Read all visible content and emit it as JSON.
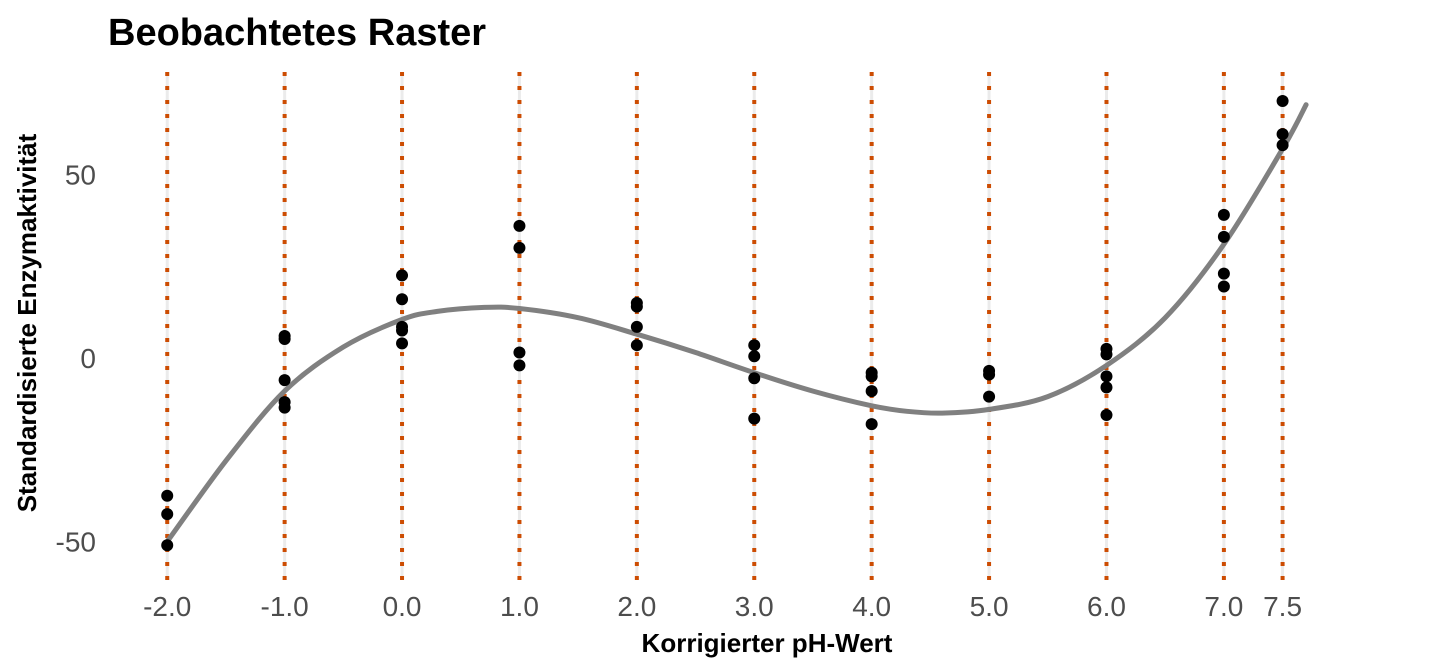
{
  "chart_data": {
    "type": "scatter",
    "title": "Beobachtetes Raster",
    "xlabel": "Korrigierter pH-Wert",
    "ylabel": "Standardisierte Enzymaktivität",
    "xlim": [
      -2.3,
      8.5
    ],
    "ylim": [
      -61,
      79
    ],
    "x_ticks": [
      -2.0,
      -1.0,
      0.0,
      1.0,
      2.0,
      3.0,
      4.0,
      5.0,
      6.0,
      7.0,
      7.5
    ],
    "x_tick_labels": [
      "-2.0",
      "-1.0",
      "0.0",
      "1.0",
      "2.0",
      "3.0",
      "4.0",
      "5.0",
      "6.0",
      "7.0",
      "7.5"
    ],
    "y_ticks": [
      -50,
      0,
      50
    ],
    "y_tick_labels": [
      "-50",
      "0",
      "50"
    ],
    "grid": "vertical",
    "legend": "none",
    "colors": {
      "points": "#000000",
      "fit_line": "#808080",
      "reference_lines": "#cc4c02",
      "gridlines": "#ebebeb"
    },
    "reference_lines_x": [
      -2.0,
      -1.0,
      0.0,
      1.0,
      2.0,
      3.0,
      4.0,
      5.0,
      6.0,
      7.0,
      7.5
    ],
    "points": [
      {
        "x": -2.0,
        "y": -37.5
      },
      {
        "x": -2.0,
        "y": -42.5
      },
      {
        "x": -2.0,
        "y": -51.0
      },
      {
        "x": -1.0,
        "y": 6.0
      },
      {
        "x": -1.0,
        "y": 5.2
      },
      {
        "x": -1.0,
        "y": -6.0
      },
      {
        "x": -1.0,
        "y": -12.0
      },
      {
        "x": -1.0,
        "y": -13.5
      },
      {
        "x": 0.0,
        "y": 22.5
      },
      {
        "x": 0.0,
        "y": 16.0
      },
      {
        "x": 0.0,
        "y": 8.5
      },
      {
        "x": 0.0,
        "y": 7.5
      },
      {
        "x": 0.0,
        "y": 4.0
      },
      {
        "x": 1.0,
        "y": 36.0
      },
      {
        "x": 1.0,
        "y": 30.0
      },
      {
        "x": 1.0,
        "y": 1.5
      },
      {
        "x": 1.0,
        "y": -2.0
      },
      {
        "x": 2.0,
        "y": 15.0
      },
      {
        "x": 2.0,
        "y": 14.0
      },
      {
        "x": 2.0,
        "y": 8.5
      },
      {
        "x": 2.0,
        "y": 3.5
      },
      {
        "x": 3.0,
        "y": 3.5
      },
      {
        "x": 3.0,
        "y": 0.5
      },
      {
        "x": 3.0,
        "y": -5.5
      },
      {
        "x": 3.0,
        "y": -16.5
      },
      {
        "x": 4.0,
        "y": -4.0
      },
      {
        "x": 4.0,
        "y": -5.0
      },
      {
        "x": 4.0,
        "y": -9.0
      },
      {
        "x": 4.0,
        "y": -18.0
      },
      {
        "x": 5.0,
        "y": -3.5
      },
      {
        "x": 5.0,
        "y": -4.5
      },
      {
        "x": 5.0,
        "y": -10.5
      },
      {
        "x": 6.0,
        "y": 2.5
      },
      {
        "x": 6.0,
        "y": 1.0
      },
      {
        "x": 6.0,
        "y": -5.0
      },
      {
        "x": 6.0,
        "y": -8.0
      },
      {
        "x": 6.0,
        "y": -15.5
      },
      {
        "x": 7.0,
        "y": 39.0
      },
      {
        "x": 7.0,
        "y": 33.0
      },
      {
        "x": 7.0,
        "y": 23.0
      },
      {
        "x": 7.0,
        "y": 19.5
      },
      {
        "x": 7.5,
        "y": 70.0
      },
      {
        "x": 7.5,
        "y": 61.0
      },
      {
        "x": 7.5,
        "y": 58.0
      }
    ],
    "fit_line": {
      "type": "smooth",
      "x": [
        -2.0,
        -1.5,
        -1.0,
        -0.5,
        0.0,
        0.3,
        0.7,
        1.0,
        1.5,
        2.0,
        2.5,
        3.0,
        3.5,
        4.0,
        4.3,
        4.6,
        5.0,
        5.5,
        6.0,
        6.5,
        7.0,
        7.5,
        7.7
      ],
      "y": [
        -50.0,
        -28.0,
        -9.0,
        3.0,
        10.5,
        12.7,
        13.8,
        13.5,
        11.0,
        6.5,
        1.5,
        -4.0,
        -9.0,
        -13.0,
        -14.5,
        -15.0,
        -14.0,
        -10.5,
        -2.0,
        11.0,
        31.0,
        57.0,
        69.0
      ]
    }
  }
}
